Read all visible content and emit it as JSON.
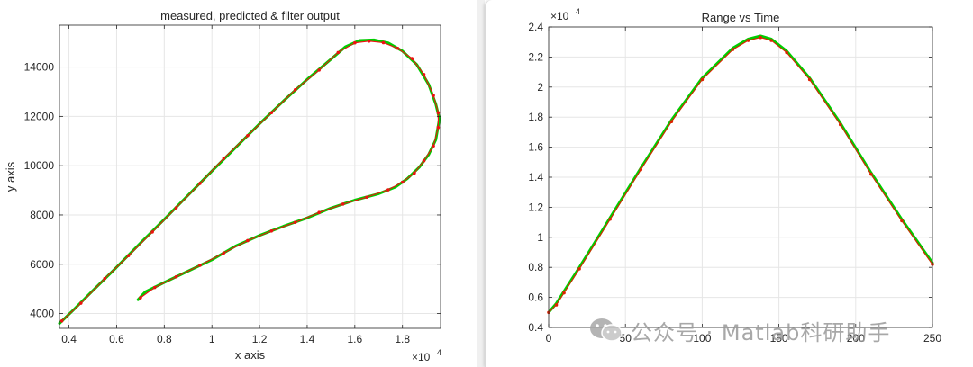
{
  "chart_data": [
    {
      "type": "line",
      "title": "measured, predicted & filter output",
      "xlabel": "x axis",
      "ylabel": "y axis",
      "x_exponent": "×10",
      "x_exponent_power": "4",
      "xlim": [
        0.36,
        1.96
      ],
      "ylim": [
        3400,
        15700
      ],
      "xticks": [
        0.4,
        0.6,
        0.8,
        1,
        1.2,
        1.4,
        1.6,
        1.8
      ],
      "xticklabels": [
        "0.4",
        "0.6",
        "0.8",
        "1",
        "1.2",
        "1.4",
        "1.6",
        "1.8"
      ],
      "yticks": [
        4000,
        6000,
        8000,
        10000,
        12000,
        14000
      ],
      "yticklabels": [
        "4000",
        "6000",
        "8000",
        "10000",
        "12000",
        "14000"
      ],
      "grid": true,
      "series": [
        {
          "color": "#00cc00",
          "marker": "line",
          "points": [
            [
              0.36,
              3600
            ],
            [
              0.42,
              4160
            ],
            [
              0.5,
              4930
            ],
            [
              0.6,
              5880
            ],
            [
              0.7,
              6860
            ],
            [
              0.8,
              7820
            ],
            [
              0.9,
              8800
            ],
            [
              1.0,
              9780
            ],
            [
              1.1,
              10740
            ],
            [
              1.2,
              11700
            ],
            [
              1.3,
              12620
            ],
            [
              1.4,
              13500
            ],
            [
              1.5,
              14320
            ],
            [
              1.56,
              14820
            ],
            [
              1.62,
              15080
            ],
            [
              1.68,
              15100
            ],
            [
              1.74,
              14980
            ],
            [
              1.8,
              14650
            ],
            [
              1.86,
              14100
            ],
            [
              1.91,
              13300
            ],
            [
              1.94,
              12500
            ],
            [
              1.955,
              11900
            ],
            [
              1.94,
              11050
            ],
            [
              1.91,
              10450
            ],
            [
              1.87,
              9930
            ],
            [
              1.82,
              9470
            ],
            [
              1.77,
              9130
            ],
            [
              1.7,
              8860
            ],
            [
              1.6,
              8600
            ],
            [
              1.5,
              8280
            ],
            [
              1.4,
              7880
            ],
            [
              1.3,
              7540
            ],
            [
              1.2,
              7170
            ],
            [
              1.1,
              6740
            ],
            [
              1.0,
              6180
            ],
            [
              0.9,
              5720
            ],
            [
              0.8,
              5260
            ],
            [
              0.72,
              4880
            ],
            [
              0.69,
              4560
            ]
          ]
        },
        {
          "color": "#ee1111",
          "marker": "dot",
          "points": [
            [
              0.37,
              3700
            ],
            [
              0.45,
              4420
            ],
            [
              0.55,
              5420
            ],
            [
              0.65,
              6350
            ],
            [
              0.75,
              7310
            ],
            [
              0.85,
              8290
            ],
            [
              0.95,
              9280
            ],
            [
              1.05,
              10300
            ],
            [
              1.15,
              11220
            ],
            [
              1.25,
              12150
            ],
            [
              1.35,
              13080
            ],
            [
              1.45,
              13880
            ],
            [
              1.53,
              14590
            ],
            [
              1.6,
              14980
            ],
            [
              1.66,
              15050
            ],
            [
              1.72,
              14990
            ],
            [
              1.78,
              14760
            ],
            [
              1.84,
              14350
            ],
            [
              1.89,
              13700
            ],
            [
              1.93,
              12850
            ],
            [
              1.95,
              12150
            ],
            [
              1.95,
              11550
            ],
            [
              1.93,
              10800
            ],
            [
              1.89,
              10200
            ],
            [
              1.85,
              9700
            ],
            [
              1.8,
              9330
            ],
            [
              1.74,
              9020
            ],
            [
              1.65,
              8720
            ],
            [
              1.55,
              8440
            ],
            [
              1.45,
              8100
            ],
            [
              1.35,
              7700
            ],
            [
              1.25,
              7350
            ],
            [
              1.15,
              6960
            ],
            [
              1.05,
              6460
            ],
            [
              0.95,
              5960
            ],
            [
              0.85,
              5490
            ],
            [
              0.76,
              5060
            ],
            [
              0.7,
              4640
            ]
          ]
        }
      ]
    },
    {
      "type": "line",
      "title": "Range vs Time",
      "xlabel": "",
      "ylabel": "",
      "y_exponent": "×10",
      "y_exponent_power": "4",
      "xlim": [
        0,
        250
      ],
      "ylim": [
        0.4,
        2.4
      ],
      "xticks": [
        0,
        50,
        100,
        150,
        200,
        250
      ],
      "xticklabels": [
        "0",
        "50",
        "100",
        "150",
        "200",
        "250"
      ],
      "yticks": [
        0.4,
        0.6,
        0.8,
        1,
        1.2,
        1.4,
        1.6,
        1.8,
        2,
        2.2,
        2.4
      ],
      "yticklabels": [
        "0.4",
        "0.6",
        "0.8",
        "1",
        "1.2",
        "1.4",
        "1.6",
        "1.8",
        "2",
        "2.2",
        "2.4"
      ],
      "grid": true,
      "series": [
        {
          "color": "#00cc00",
          "marker": "line",
          "points": [
            [
              0,
              0.5
            ],
            [
              5,
              0.56
            ],
            [
              10,
              0.64
            ],
            [
              20,
              0.8
            ],
            [
              40,
              1.13
            ],
            [
              60,
              1.46
            ],
            [
              80,
              1.78
            ],
            [
              100,
              2.06
            ],
            [
              120,
              2.26
            ],
            [
              130,
              2.32
            ],
            [
              138,
              2.34
            ],
            [
              145,
              2.32
            ],
            [
              155,
              2.24
            ],
            [
              170,
              2.06
            ],
            [
              190,
              1.76
            ],
            [
              210,
              1.43
            ],
            [
              230,
              1.12
            ],
            [
              250,
              0.83
            ]
          ]
        },
        {
          "color": "#dd2200",
          "marker": "dot",
          "points": [
            [
              0,
              0.5
            ],
            [
              5,
              0.55
            ],
            [
              10,
              0.63
            ],
            [
              20,
              0.79
            ],
            [
              40,
              1.12
            ],
            [
              60,
              1.45
            ],
            [
              80,
              1.77
            ],
            [
              100,
              2.05
            ],
            [
              120,
              2.25
            ],
            [
              130,
              2.31
            ],
            [
              138,
              2.33
            ],
            [
              145,
              2.31
            ],
            [
              155,
              2.23
            ],
            [
              170,
              2.05
            ],
            [
              190,
              1.75
            ],
            [
              210,
              1.42
            ],
            [
              230,
              1.11
            ],
            [
              250,
              0.82
            ]
          ]
        }
      ]
    }
  ],
  "watermark": {
    "text": "公众号 · Matlab科研助手",
    "icon": "wechat-icon"
  }
}
